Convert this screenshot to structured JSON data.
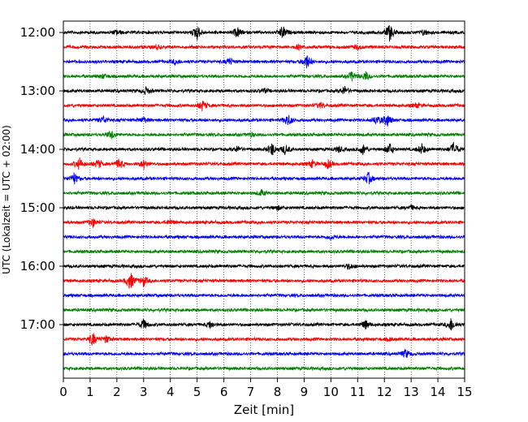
{
  "chart_data": {
    "type": "line",
    "subtype": "helicorder",
    "title": "",
    "xlabel": "Zeit  [min]",
    "ylabel": "UTC (Lokalzeit = UTC + 02:00)",
    "xlim": [
      0,
      15
    ],
    "x_ticks": [
      0,
      1,
      2,
      3,
      4,
      5,
      6,
      7,
      8,
      9,
      10,
      11,
      12,
      13,
      14,
      15
    ],
    "x_tick_labels": [
      "0",
      "1",
      "2",
      "3",
      "4",
      "5",
      "6",
      "7",
      "8",
      "9",
      "10",
      "11",
      "12",
      "13",
      "14",
      "15"
    ],
    "x_grid": true,
    "x_grid_style": "dotted",
    "y_tick_labels": [
      "12:00",
      "13:00",
      "14:00",
      "15:00",
      "16:00",
      "17:00"
    ],
    "line_interval_min": 15,
    "line_colors": [
      "#000000",
      "#ff0000",
      "#0000ff",
      "#008000"
    ],
    "colors": {
      "black": "#000000",
      "red": "#ff0000",
      "blue": "#0000ff",
      "green": "#008000"
    },
    "traces": [
      {
        "start": "12:00",
        "color": "#000000",
        "events": [
          [
            5.0,
            1.0
          ],
          [
            6.5,
            0.7
          ],
          [
            8.2,
            0.9
          ],
          [
            12.2,
            1.2
          ],
          [
            13.5,
            0.4
          ],
          [
            2.0,
            0.3
          ]
        ]
      },
      {
        "start": "12:15",
        "color": "#ff0000",
        "events": [
          [
            3.5,
            0.3
          ],
          [
            8.8,
            0.3
          ],
          [
            11.0,
            0.3
          ]
        ]
      },
      {
        "start": "12:30",
        "color": "#0000ff",
        "events": [
          [
            9.1,
            1.0
          ],
          [
            6.2,
            0.5
          ],
          [
            4.2,
            0.4
          ]
        ]
      },
      {
        "start": "12:45",
        "color": "#008000",
        "events": [
          [
            10.8,
            0.7
          ],
          [
            11.3,
            0.6
          ],
          [
            1.5,
            0.3
          ]
        ]
      },
      {
        "start": "13:00",
        "color": "#000000",
        "events": [
          [
            3.1,
            0.5
          ],
          [
            10.5,
            0.6
          ],
          [
            7.5,
            0.3
          ]
        ]
      },
      {
        "start": "13:15",
        "color": "#ff0000",
        "events": [
          [
            5.2,
            0.7
          ],
          [
            9.6,
            0.4
          ],
          [
            13.2,
            0.3
          ]
        ]
      },
      {
        "start": "13:30",
        "color": "#0000ff",
        "events": [
          [
            1.5,
            0.5
          ],
          [
            8.4,
            0.8
          ],
          [
            11.7,
            0.6
          ],
          [
            12.1,
            0.9
          ],
          [
            3.0,
            0.4
          ]
        ]
      },
      {
        "start": "13:45",
        "color": "#008000",
        "events": [
          [
            1.8,
            0.6
          ],
          [
            7.0,
            0.3
          ]
        ]
      },
      {
        "start": "14:00",
        "color": "#000000",
        "events": [
          [
            7.8,
            0.9
          ],
          [
            8.3,
            0.7
          ],
          [
            11.2,
            0.7
          ],
          [
            12.2,
            0.8
          ],
          [
            13.4,
            0.7
          ],
          [
            14.6,
            1.0
          ],
          [
            10.3,
            0.4
          ],
          [
            6.5,
            0.4
          ]
        ]
      },
      {
        "start": "14:15",
        "color": "#ff0000",
        "events": [
          [
            0.6,
            0.8
          ],
          [
            1.3,
            0.6
          ],
          [
            2.1,
            0.7
          ],
          [
            3.0,
            0.6
          ],
          [
            9.3,
            0.5
          ],
          [
            9.9,
            0.6
          ]
        ]
      },
      {
        "start": "14:30",
        "color": "#0000ff",
        "events": [
          [
            0.4,
            0.8
          ],
          [
            11.4,
            0.8
          ]
        ]
      },
      {
        "start": "14:45",
        "color": "#008000",
        "events": [
          [
            7.4,
            0.4
          ]
        ]
      },
      {
        "start": "15:00",
        "color": "#000000",
        "events": [
          [
            8.0,
            0.3
          ],
          [
            13.0,
            0.3
          ]
        ]
      },
      {
        "start": "15:15",
        "color": "#ff0000",
        "events": [
          [
            1.1,
            0.6
          ],
          [
            4.0,
            0.3
          ]
        ]
      },
      {
        "start": "15:30",
        "color": "#0000ff",
        "events": [
          [
            10.0,
            0.3
          ]
        ]
      },
      {
        "start": "15:45",
        "color": "#008000",
        "events": []
      },
      {
        "start": "16:00",
        "color": "#000000",
        "events": [
          [
            10.7,
            0.4
          ]
        ]
      },
      {
        "start": "16:15",
        "color": "#ff0000",
        "events": [
          [
            2.5,
            1.3
          ],
          [
            3.0,
            0.7
          ]
        ]
      },
      {
        "start": "16:30",
        "color": "#0000ff",
        "events": []
      },
      {
        "start": "16:45",
        "color": "#008000",
        "events": []
      },
      {
        "start": "17:00",
        "color": "#000000",
        "events": [
          [
            3.0,
            0.7
          ],
          [
            5.5,
            0.5
          ],
          [
            11.3,
            0.6
          ],
          [
            14.5,
            0.9
          ]
        ]
      },
      {
        "start": "17:15",
        "color": "#ff0000",
        "events": [
          [
            1.1,
            0.9
          ],
          [
            1.6,
            0.5
          ],
          [
            12.2,
            0.2
          ]
        ]
      },
      {
        "start": "17:30",
        "color": "#0000ff",
        "events": [
          [
            12.8,
            0.6
          ]
        ]
      },
      {
        "start": "17:45",
        "color": "#008000",
        "events": []
      }
    ]
  }
}
